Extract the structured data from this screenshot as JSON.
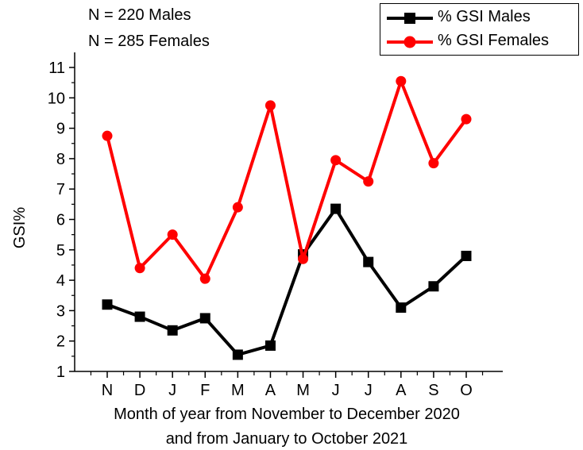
{
  "annotations": {
    "males_n": "N = 220 Males",
    "females_n": "N = 285 Females"
  },
  "chart_data": {
    "type": "line",
    "title": "",
    "xlabel_line1": "Month of year from November to December 2020",
    "xlabel_line2": "and from January to October 2021",
    "ylabel": "GSI%",
    "categories": [
      "N",
      "D",
      "J",
      "F",
      "M",
      "A",
      "M",
      "J",
      "J",
      "A",
      "S",
      "O"
    ],
    "ylim": [
      1,
      11.5
    ],
    "yticks": [
      1,
      2,
      3,
      4,
      5,
      6,
      7,
      8,
      9,
      10,
      11
    ],
    "grid": false,
    "legend_position": "top-right",
    "series": [
      {
        "name": "% GSI Males",
        "color": "#000000",
        "marker": "square",
        "values": [
          3.2,
          2.8,
          2.35,
          2.75,
          1.55,
          1.85,
          4.85,
          6.35,
          4.6,
          3.1,
          3.8,
          4.8
        ]
      },
      {
        "name": "% GSI Females",
        "color": "#ff0000",
        "marker": "circle",
        "values": [
          8.75,
          4.4,
          5.5,
          4.05,
          6.4,
          9.75,
          4.7,
          7.95,
          7.25,
          10.55,
          7.85,
          9.3
        ]
      }
    ]
  }
}
